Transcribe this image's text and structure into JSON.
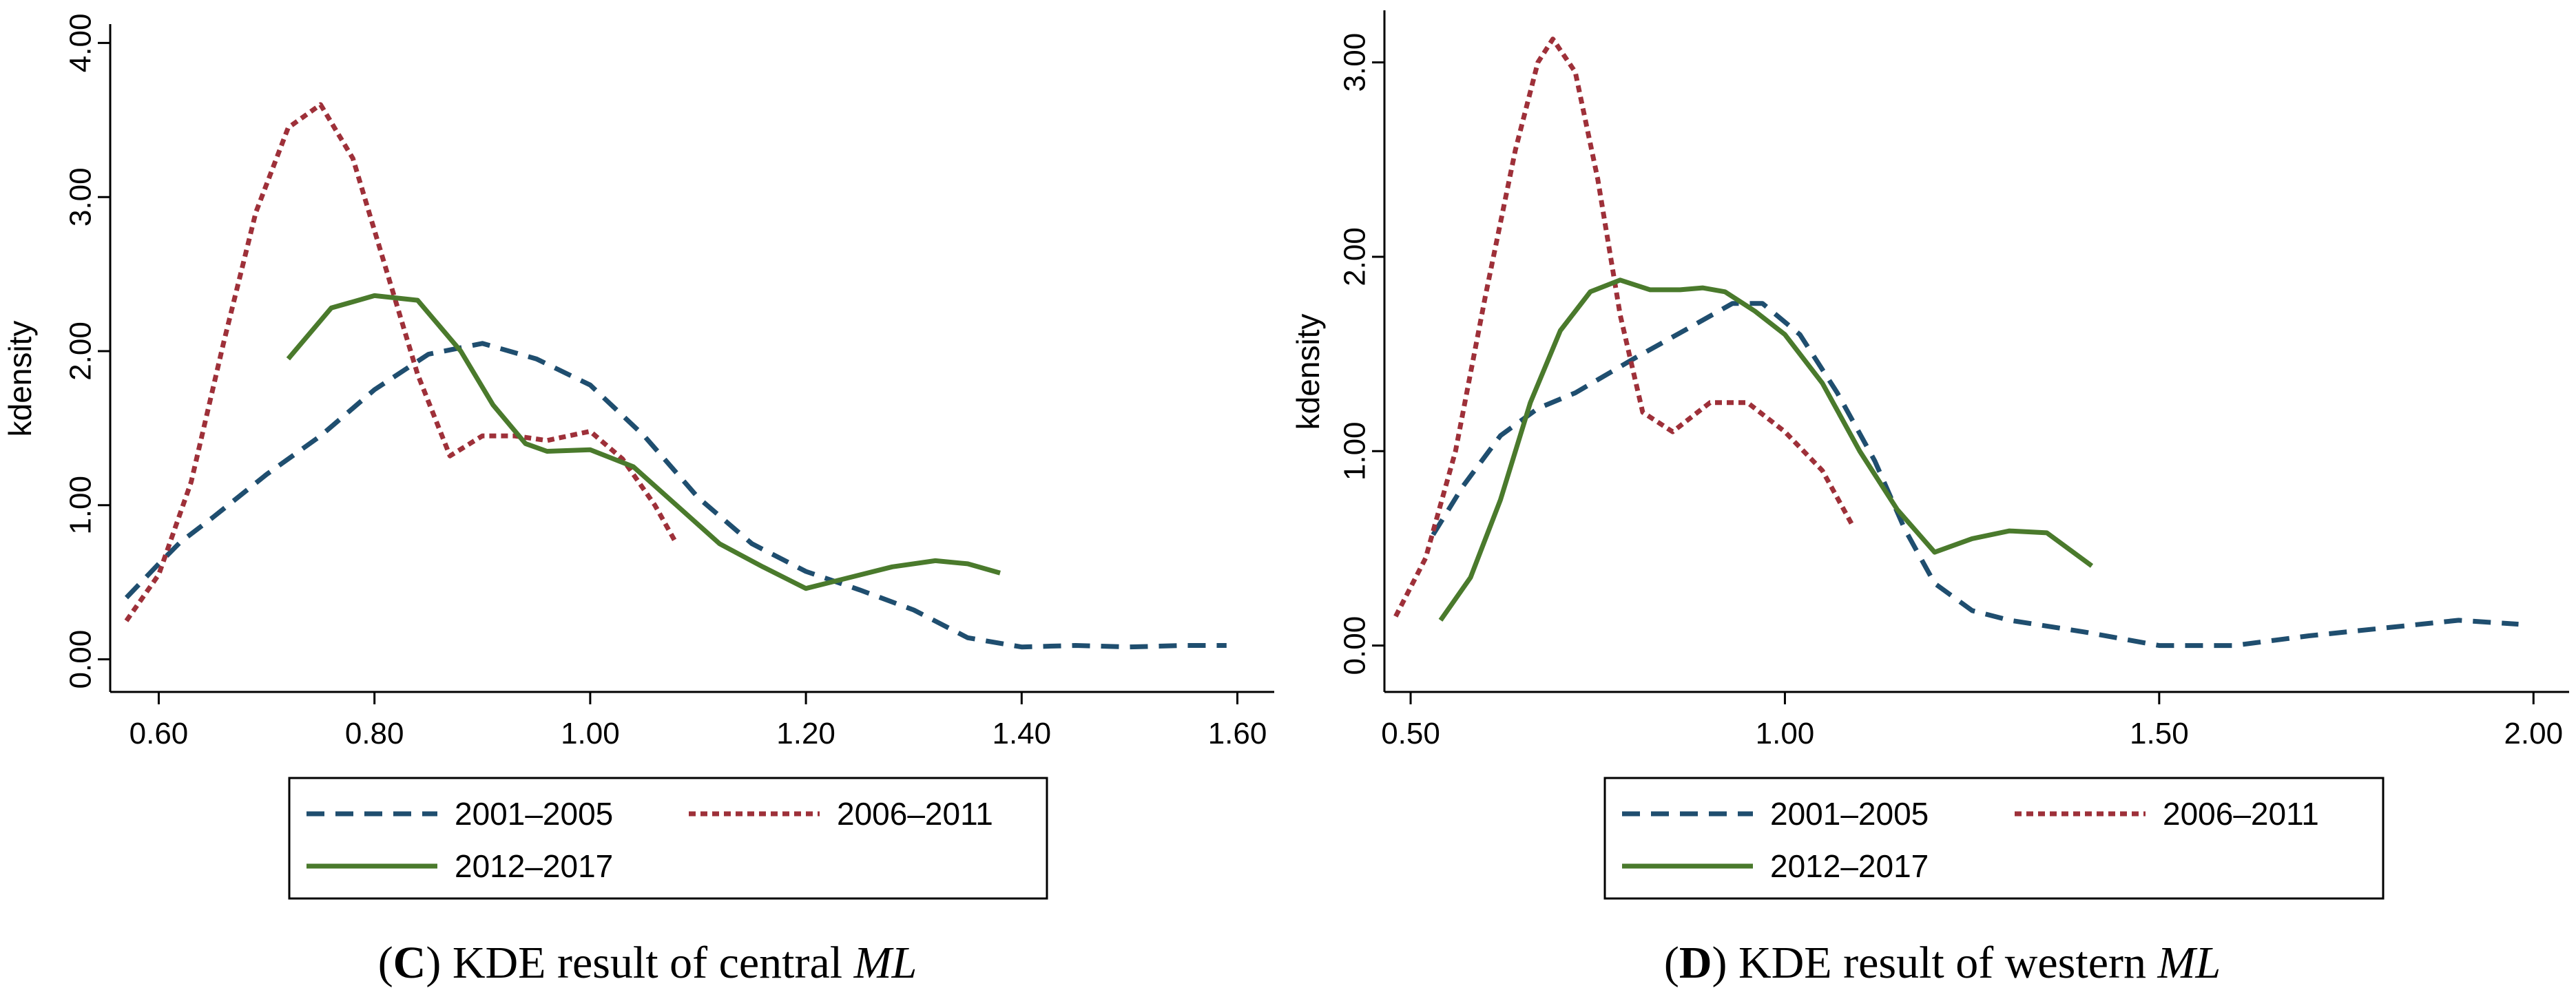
{
  "chart_data": [
    {
      "type": "line",
      "caption": {
        "open": "(",
        "letter": "C",
        "close": ")",
        "text": " KDE result of central ",
        "italic": "ML"
      },
      "ylabel": "kdensity",
      "xlabel": "",
      "xlim": [
        0.555,
        1.615
      ],
      "ylim": [
        -0.1,
        4.1
      ],
      "x_ticks": [
        "0.60",
        "0.80",
        "1.00",
        "1.20",
        "1.40",
        "1.60"
      ],
      "y_ticks": [
        "0.00",
        "1.00",
        "2.00",
        "3.00",
        "4.00"
      ],
      "legend_position": "bottom",
      "series": [
        {
          "name": "2001–2005",
          "color": "#1f4e6f",
          "dash": "dashed",
          "x": [
            0.57,
            0.6,
            0.62,
            0.65,
            0.7,
            0.75,
            0.8,
            0.85,
            0.9,
            0.95,
            1.0,
            1.05,
            1.1,
            1.15,
            1.2,
            1.25,
            1.3,
            1.35,
            1.4,
            1.45,
            1.5,
            1.55,
            1.59
          ],
          "y": [
            0.4,
            0.62,
            0.76,
            0.92,
            1.2,
            1.45,
            1.75,
            1.98,
            2.05,
            1.95,
            1.78,
            1.45,
            1.05,
            0.75,
            0.57,
            0.45,
            0.32,
            0.14,
            0.08,
            0.09,
            0.08,
            0.09,
            0.09
          ]
        },
        {
          "name": "2006–2011",
          "color": "#9e3039",
          "dash": "dotted",
          "x": [
            0.57,
            0.6,
            0.63,
            0.66,
            0.69,
            0.72,
            0.75,
            0.78,
            0.81,
            0.84,
            0.87,
            0.9,
            0.93,
            0.96,
            1.0,
            1.03,
            1.06,
            1.08
          ],
          "y": [
            0.25,
            0.55,
            1.15,
            2.05,
            2.9,
            3.45,
            3.6,
            3.25,
            2.55,
            1.85,
            1.32,
            1.45,
            1.45,
            1.42,
            1.48,
            1.3,
            1.0,
            0.75
          ]
        },
        {
          "name": "2012–2017",
          "color": "#4a7a2c",
          "dash": "solid",
          "x": [
            0.72,
            0.76,
            0.8,
            0.84,
            0.88,
            0.91,
            0.94,
            0.96,
            1.0,
            1.04,
            1.08,
            1.12,
            1.16,
            1.2,
            1.24,
            1.28,
            1.32,
            1.35,
            1.38
          ],
          "y": [
            1.95,
            2.28,
            2.36,
            2.33,
            2.0,
            1.65,
            1.4,
            1.35,
            1.36,
            1.25,
            1.0,
            0.75,
            0.6,
            0.46,
            0.53,
            0.6,
            0.64,
            0.62,
            0.56
          ]
        }
      ]
    },
    {
      "type": "line",
      "caption": {
        "open": "(",
        "letter": "D",
        "close": ")",
        "text": " KDE result of western ",
        "italic": "ML"
      },
      "ylabel": "kdensity",
      "xlabel": "",
      "xlim": [
        0.465,
        2.02
      ],
      "ylim": [
        -0.15,
        3.25
      ],
      "x_ticks": [
        "0.50",
        "1.00",
        "1.50",
        "2.00"
      ],
      "y_ticks": [
        "0.00",
        "1.00",
        "2.00",
        "3.00"
      ],
      "legend_position": "bottom",
      "series": [
        {
          "name": "2001–2005",
          "color": "#1f4e6f",
          "dash": "dashed",
          "x": [
            0.53,
            0.57,
            0.62,
            0.67,
            0.72,
            0.8,
            0.87,
            0.93,
            0.97,
            1.02,
            1.07,
            1.12,
            1.16,
            1.2,
            1.25,
            1.3,
            1.4,
            1.5,
            1.6,
            1.7,
            1.8,
            1.9,
            1.98
          ],
          "y": [
            0.57,
            0.82,
            1.08,
            1.22,
            1.3,
            1.48,
            1.63,
            1.76,
            1.76,
            1.6,
            1.3,
            0.95,
            0.6,
            0.32,
            0.18,
            0.13,
            0.07,
            0.0,
            0.0,
            0.05,
            0.09,
            0.13,
            0.11
          ]
        },
        {
          "name": "2006–2011",
          "color": "#9e3039",
          "dash": "dotted",
          "x": [
            0.48,
            0.52,
            0.56,
            0.6,
            0.64,
            0.67,
            0.69,
            0.72,
            0.75,
            0.78,
            0.81,
            0.85,
            0.9,
            0.95,
            1.0,
            1.05,
            1.09
          ],
          "y": [
            0.15,
            0.45,
            1.0,
            1.8,
            2.55,
            3.0,
            3.12,
            2.95,
            2.4,
            1.7,
            1.2,
            1.1,
            1.25,
            1.25,
            1.1,
            0.9,
            0.62
          ]
        },
        {
          "name": "2012–2017",
          "color": "#4a7a2c",
          "dash": "solid",
          "x": [
            0.54,
            0.58,
            0.62,
            0.66,
            0.7,
            0.74,
            0.78,
            0.82,
            0.86,
            0.89,
            0.92,
            0.96,
            1.0,
            1.05,
            1.1,
            1.15,
            1.2,
            1.25,
            1.3,
            1.35,
            1.41
          ],
          "y": [
            0.13,
            0.35,
            0.75,
            1.25,
            1.62,
            1.82,
            1.88,
            1.83,
            1.83,
            1.84,
            1.82,
            1.72,
            1.6,
            1.35,
            1.0,
            0.7,
            0.48,
            0.55,
            0.59,
            0.58,
            0.41
          ]
        }
      ]
    }
  ]
}
